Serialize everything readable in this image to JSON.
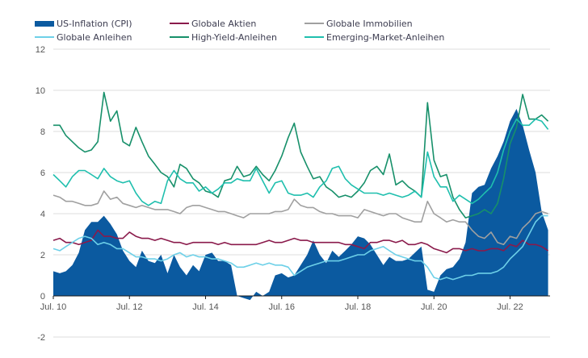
{
  "chart_data": {
    "type": "line",
    "title": "",
    "xlabel": "",
    "ylabel": "",
    "ylim": [
      -2,
      12
    ],
    "yticks": [
      -2,
      0,
      2,
      4,
      6,
      8,
      10,
      12
    ],
    "xticks": [
      "Jul. 10",
      "Jul. 12",
      "Jul. 14",
      "Jul. 16",
      "Jul. 18",
      "Jul. 20",
      "Jul. 22"
    ],
    "x_unit": "years since Jul. 2010",
    "xlim": [
      0,
      13.05
    ],
    "grid": true,
    "legend_position": "top",
    "x": [
      0,
      0.17,
      0.33,
      0.5,
      0.67,
      0.83,
      1.0,
      1.17,
      1.33,
      1.5,
      1.67,
      1.83,
      2.0,
      2.17,
      2.33,
      2.5,
      2.67,
      2.83,
      3.0,
      3.17,
      3.33,
      3.5,
      3.67,
      3.83,
      4.0,
      4.17,
      4.33,
      4.5,
      4.67,
      4.83,
      5.0,
      5.17,
      5.33,
      5.5,
      5.67,
      5.83,
      6.0,
      6.17,
      6.33,
      6.5,
      6.67,
      6.83,
      7.0,
      7.17,
      7.33,
      7.5,
      7.67,
      7.83,
      8.0,
      8.17,
      8.33,
      8.5,
      8.67,
      8.83,
      9.0,
      9.17,
      9.33,
      9.5,
      9.67,
      9.83,
      10.0,
      10.17,
      10.33,
      10.5,
      10.67,
      10.83,
      11.0,
      11.17,
      11.33,
      11.5,
      11.67,
      11.83,
      12.0,
      12.17,
      12.33,
      12.5,
      12.67,
      12.83,
      13.0
    ],
    "series": [
      {
        "name": "US-Inflation (CPI)",
        "type": "area",
        "color": "#0b5aa0",
        "values": [
          1.2,
          1.1,
          1.2,
          1.5,
          2.1,
          3.2,
          3.6,
          3.6,
          3.9,
          3.5,
          3.0,
          2.2,
          1.7,
          1.4,
          2.2,
          1.7,
          1.6,
          2.0,
          1.1,
          2.0,
          1.4,
          1.0,
          1.5,
          1.2,
          2.0,
          2.1,
          1.7,
          1.7,
          1.5,
          0.0,
          -0.1,
          -0.2,
          0.2,
          0.0,
          0.2,
          1.0,
          1.1,
          0.9,
          1.0,
          1.5,
          2.0,
          2.7,
          2.0,
          1.6,
          2.2,
          1.9,
          2.2,
          2.5,
          2.9,
          2.8,
          2.5,
          2.0,
          1.5,
          1.9,
          1.7,
          1.7,
          1.8,
          2.1,
          2.4,
          0.3,
          0.2,
          1.0,
          1.3,
          1.4,
          1.8,
          2.6,
          5.0,
          5.3,
          5.4,
          6.2,
          6.8,
          7.5,
          8.5,
          9.1,
          8.3,
          7.1,
          6.0,
          4.1,
          3.2
        ]
      },
      {
        "name": "Globale Aktien",
        "type": "line",
        "color": "#8a1a4b",
        "values": [
          2.7,
          2.8,
          2.6,
          2.6,
          2.5,
          2.6,
          2.7,
          3.2,
          2.9,
          2.9,
          2.8,
          2.8,
          3.1,
          2.9,
          2.8,
          2.8,
          2.7,
          2.8,
          2.7,
          2.6,
          2.6,
          2.5,
          2.6,
          2.6,
          2.6,
          2.6,
          2.5,
          2.6,
          2.5,
          2.5,
          2.5,
          2.5,
          2.5,
          2.6,
          2.7,
          2.6,
          2.6,
          2.7,
          2.8,
          2.7,
          2.7,
          2.6,
          2.6,
          2.6,
          2.6,
          2.6,
          2.5,
          2.5,
          2.4,
          2.3,
          2.6,
          2.6,
          2.7,
          2.7,
          2.6,
          2.7,
          2.5,
          2.5,
          2.6,
          2.5,
          2.3,
          2.2,
          2.1,
          2.3,
          2.3,
          2.2,
          2.3,
          2.2,
          2.2,
          2.3,
          2.3,
          2.2,
          2.5,
          2.4,
          2.7,
          2.5,
          2.5,
          2.4,
          2.2
        ]
      },
      {
        "name": "Globale Immobilien",
        "type": "line",
        "color": "#a0a0a0",
        "values": [
          4.9,
          4.8,
          4.6,
          4.6,
          4.5,
          4.4,
          4.4,
          4.5,
          5.1,
          4.7,
          4.8,
          4.5,
          4.4,
          4.3,
          4.4,
          4.3,
          4.2,
          4.2,
          4.2,
          4.1,
          4.0,
          4.3,
          4.4,
          4.4,
          4.3,
          4.2,
          4.1,
          4.1,
          4.0,
          3.9,
          3.8,
          4.0,
          4.0,
          4.0,
          4.0,
          4.1,
          4.1,
          4.2,
          4.7,
          4.4,
          4.3,
          4.3,
          4.1,
          4.0,
          4.0,
          3.9,
          3.9,
          3.9,
          3.8,
          4.2,
          4.1,
          4.0,
          3.9,
          4.0,
          4.0,
          3.8,
          3.7,
          3.6,
          3.6,
          4.6,
          4.0,
          3.8,
          3.6,
          3.7,
          3.6,
          3.6,
          3.2,
          2.9,
          2.8,
          3.1,
          2.6,
          2.5,
          2.9,
          2.8,
          3.3,
          3.6,
          4.0,
          4.1,
          4.0
        ]
      },
      {
        "name": "Globale Anleihen",
        "type": "line",
        "color": "#6dd0e8",
        "values": [
          2.3,
          2.2,
          2.4,
          2.6,
          2.8,
          2.9,
          2.8,
          2.5,
          2.6,
          2.5,
          2.3,
          2.3,
          2.1,
          1.9,
          1.9,
          1.8,
          1.8,
          1.7,
          1.8,
          2.0,
          2.1,
          1.9,
          2.0,
          1.9,
          1.9,
          1.8,
          1.8,
          1.7,
          1.6,
          1.4,
          1.4,
          1.5,
          1.6,
          1.5,
          1.6,
          1.5,
          1.5,
          1.4,
          1.0,
          1.2,
          1.4,
          1.5,
          1.6,
          1.7,
          1.7,
          1.7,
          1.8,
          1.9,
          2.0,
          2.0,
          2.2,
          2.3,
          2.4,
          2.2,
          2.0,
          1.9,
          1.8,
          1.7,
          1.7,
          1.4,
          0.9,
          0.8,
          0.9,
          0.8,
          0.9,
          1.0,
          1.0,
          1.1,
          1.1,
          1.1,
          1.2,
          1.4,
          1.8,
          2.1,
          2.4,
          3.0,
          3.6,
          3.9,
          3.9
        ]
      },
      {
        "name": "High-Yield-Anleihen",
        "type": "line",
        "color": "#17906a",
        "values": [
          8.3,
          8.3,
          7.8,
          7.5,
          7.2,
          7.0,
          7.1,
          7.5,
          9.9,
          8.5,
          9.0,
          7.5,
          7.3,
          8.2,
          7.5,
          6.8,
          6.4,
          6.0,
          5.8,
          5.3,
          6.4,
          6.2,
          5.7,
          5.5,
          5.1,
          5.0,
          4.8,
          5.6,
          5.7,
          6.3,
          5.8,
          5.9,
          6.3,
          5.9,
          5.6,
          6.1,
          6.8,
          7.7,
          8.4,
          7.0,
          6.3,
          5.7,
          5.8,
          5.3,
          5.1,
          4.8,
          4.9,
          4.8,
          5.1,
          5.5,
          6.1,
          6.3,
          5.9,
          6.9,
          5.4,
          5.6,
          5.3,
          5.1,
          4.8,
          9.4,
          6.6,
          5.8,
          5.9,
          4.8,
          4.2,
          3.8,
          3.9,
          4.0,
          4.2,
          4.0,
          4.5,
          5.7,
          7.4,
          8.2,
          9.8,
          8.6,
          8.6,
          8.8,
          8.5
        ]
      },
      {
        "name": "Emerging-Market-Anleihen",
        "type": "line",
        "color": "#1fbfae",
        "values": [
          5.9,
          5.6,
          5.3,
          5.8,
          6.1,
          6.1,
          5.9,
          5.7,
          6.2,
          5.8,
          5.6,
          5.5,
          5.6,
          5.0,
          4.6,
          4.4,
          4.6,
          4.5,
          5.6,
          6.1,
          5.7,
          5.5,
          5.5,
          5.1,
          5.3,
          5.0,
          5.2,
          5.5,
          5.5,
          5.7,
          5.6,
          5.6,
          6.2,
          5.6,
          5.0,
          5.5,
          5.6,
          5.0,
          4.9,
          4.9,
          5.0,
          4.8,
          5.3,
          5.6,
          6.2,
          6.3,
          5.7,
          5.4,
          5.2,
          5.0,
          5.0,
          5.0,
          4.9,
          5.0,
          4.9,
          4.8,
          4.9,
          5.1,
          4.8,
          7.0,
          5.8,
          5.3,
          5.3,
          4.6,
          4.9,
          4.7,
          4.5,
          4.7,
          5.0,
          5.3,
          6.0,
          7.1,
          8.0,
          8.6,
          8.3,
          8.3,
          8.6,
          8.5,
          8.1
        ]
      }
    ]
  }
}
